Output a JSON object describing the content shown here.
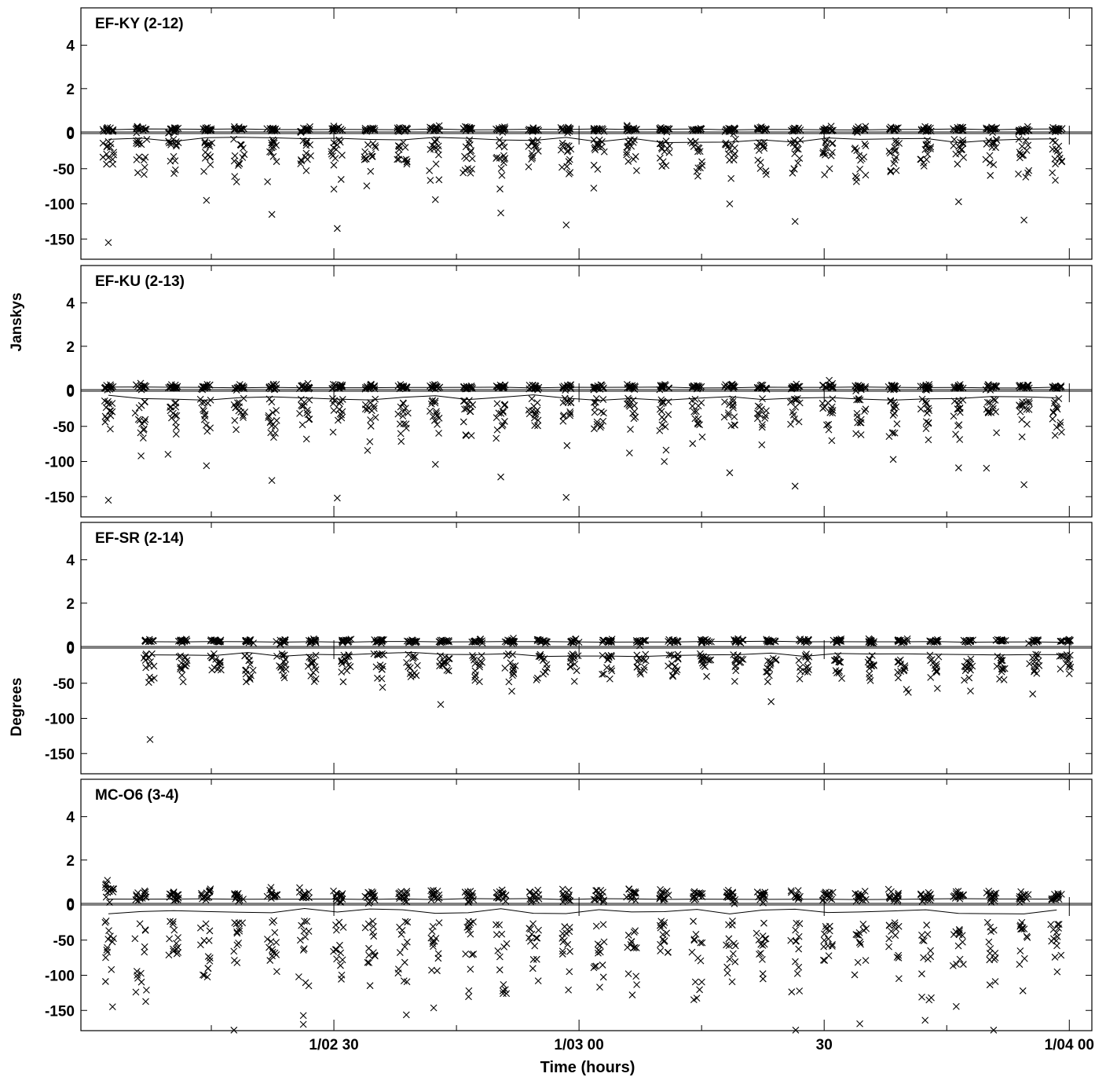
{
  "chart_data": {
    "type": "scatter",
    "xlabel": "Time (hours)",
    "ylabels": [
      "Janskys",
      "Degrees"
    ],
    "x_ticks": [
      {
        "t": 0.5,
        "label": "1/02 30"
      },
      {
        "t": 1.0,
        "label": "1/03 00"
      },
      {
        "t": 1.5,
        "label": "30"
      },
      {
        "t": 2.0,
        "label": "1/04 00"
      }
    ],
    "x_minor_ticks": [
      0.25,
      0.75,
      1.25,
      1.75
    ],
    "xlim": [
      -0.016,
      2.046
    ],
    "panels": [
      {
        "title": "EF-KY (2-12)",
        "amp": {
          "ylim": [
            -0.6,
            5.4
          ],
          "ticks": [
            0,
            2,
            4
          ],
          "scan_mean": 0.12,
          "scan_spread": 0.15,
          "model_level": 0.12
        },
        "phase": {
          "ylim": [
            -180,
            180
          ],
          "ticks": [
            -150,
            -100,
            -50,
            0
          ],
          "scan_mean": -20,
          "scan_spread": 50,
          "outliers": [
            -155,
            -135,
            -130,
            -125,
            -123,
            -115,
            -113,
            -100,
            -97,
            -95,
            -94
          ]
        },
        "first_scan_hours": 0.04
      },
      {
        "title": "EF-KU (2-13)",
        "amp": {
          "ylim": [
            -0.6,
            5.4
          ],
          "ticks": [
            0,
            2,
            4
          ],
          "scan_mean": 0.12,
          "scan_spread": 0.15,
          "model_level": 0.1
        },
        "phase": {
          "ylim": [
            -180,
            180
          ],
          "ticks": [
            -150,
            -100,
            -50,
            0
          ],
          "scan_mean": -25,
          "scan_spread": 55,
          "outliers": [
            -155,
            -152,
            -151,
            -135,
            -133,
            -127,
            -122,
            -116,
            -109,
            -106,
            -104,
            -100,
            -97,
            -92
          ]
        },
        "first_scan_hours": 0.04
      },
      {
        "title": "EF-SR (2-14)",
        "amp": {
          "ylim": [
            -0.6,
            5.4
          ],
          "ticks": [
            0,
            2,
            4
          ],
          "scan_mean": 0.25,
          "scan_spread": 0.12,
          "model_level": 0.22
        },
        "phase": {
          "ylim": [
            -180,
            180
          ],
          "ticks": [
            -150,
            -100,
            -50,
            0
          ],
          "scan_mean": -20,
          "scan_spread": 40,
          "outliers": [
            -130
          ]
        },
        "first_scan_hours": 0.125
      },
      {
        "title": "MC-O6 (3-4)",
        "amp": {
          "ylim": [
            -0.6,
            5.4
          ],
          "ticks": [
            0,
            2,
            4
          ],
          "scan_mean": 0.35,
          "scan_spread": 0.35,
          "model_level": 0.2,
          "early_high": 1.0
        },
        "phase": {
          "ylim": [
            -180,
            180
          ],
          "ticks": [
            -150,
            -100,
            -50,
            0
          ],
          "scan_mean": -55,
          "scan_spread": 110
        },
        "first_scan_hours": 0.04
      }
    ],
    "scan_count": 30,
    "scan_interval_hours": 0.0667,
    "marker": "x"
  }
}
